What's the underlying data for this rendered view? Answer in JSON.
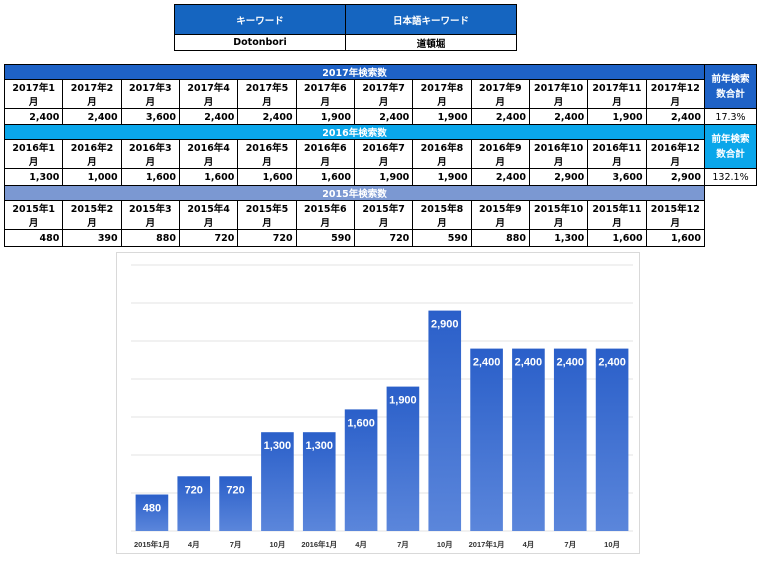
{
  "keyword_table": {
    "header_keyword": "キーワード",
    "header_jp_keyword": "日本語キーワード",
    "keyword": "Dotonbori",
    "jp_keyword": "道頓堀"
  },
  "table_2017": {
    "title": "2017年検索数",
    "prev_header_line1": "前年検索",
    "prev_header_line2": "数合計",
    "months": [
      "2017年1月",
      "2017年2月",
      "2017年3月",
      "2017年4月",
      "2017年5月",
      "2017年6月",
      "2017年7月",
      "2017年8月",
      "2017年9月",
      "2017年10月",
      "2017年11月",
      "2017年12月"
    ],
    "values": [
      "2,400",
      "2,400",
      "3,600",
      "2,400",
      "2,400",
      "1,900",
      "2,400",
      "1,900",
      "2,400",
      "2,400",
      "1,900",
      "2,400"
    ],
    "prev_pct": "17.3%"
  },
  "table_2016": {
    "title": "2016年検索数",
    "prev_header_line1": "前年検索",
    "prev_header_line2": "数合計",
    "months": [
      "2016年1月",
      "2016年2月",
      "2016年3月",
      "2016年4月",
      "2016年5月",
      "2016年6月",
      "2016年7月",
      "2016年8月",
      "2016年9月",
      "2016年10月",
      "2016年11月",
      "2016年12月"
    ],
    "values": [
      "1,300",
      "1,000",
      "1,600",
      "1,600",
      "1,600",
      "1,600",
      "1,900",
      "1,900",
      "2,400",
      "2,900",
      "3,600",
      "2,900"
    ],
    "prev_pct": "132.1%"
  },
  "table_2015": {
    "title": "2015年検索数",
    "months": [
      "2015年1月",
      "2015年2月",
      "2015年3月",
      "2015年4月",
      "2015年5月",
      "2015年6月",
      "2015年7月",
      "2015年8月",
      "2015年9月",
      "2015年10月",
      "2015年11月",
      "2015年12月"
    ],
    "values": [
      "480",
      "390",
      "880",
      "720",
      "720",
      "590",
      "720",
      "590",
      "880",
      "1,300",
      "1,600",
      "1,600"
    ]
  },
  "colors": {
    "bar_top": "#2a5fc9",
    "bar_bottom": "#5b86db",
    "grid": "#e3e3e3"
  },
  "chart_data": {
    "type": "bar",
    "categories": [
      "2015年1月",
      "4月",
      "7月",
      "10月",
      "2016年1月",
      "4月",
      "7月",
      "10月",
      "2017年1月",
      "4月",
      "7月",
      "10月"
    ],
    "values": [
      480,
      720,
      720,
      1300,
      1300,
      1600,
      1900,
      2900,
      2400,
      2400,
      2400,
      2400
    ],
    "data_labels": [
      "480",
      "720",
      "720",
      "1,300",
      "1,300",
      "1,600",
      "1,900",
      "2,900",
      "2,400",
      "2,400",
      "2,400",
      "2,400"
    ],
    "ylim": [
      0,
      3500
    ],
    "grid": true,
    "title": "",
    "xlabel": "",
    "ylabel": ""
  }
}
